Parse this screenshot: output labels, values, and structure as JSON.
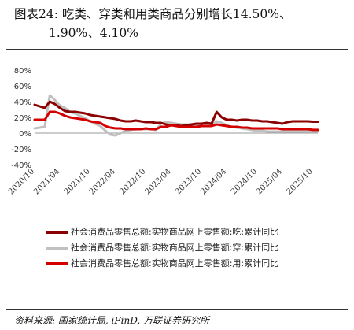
{
  "header": {
    "line1": "图表24:  吃类、穿类和用类商品分别增长14.50%、",
    "line2": "1.90%、4.10%"
  },
  "source": "资料来源:  国家统计局,  iFinD,  万联证券研究所",
  "chart_data": {
    "type": "line",
    "title": "图表24:  吃类、穿类和用类商品分别增长14.50%、1.90%、4.10%",
    "xlabel": "",
    "ylabel": "",
    "ylim": [
      -40,
      80
    ],
    "yticks": [
      "80%",
      "60%",
      "40%",
      "20%",
      "0%",
      "-20%",
      "-40%"
    ],
    "ytick_values": [
      80,
      60,
      40,
      20,
      0,
      -20,
      -40
    ],
    "x_tick_labels": [
      "2020/10",
      "2021/04",
      "2021/10",
      "2022/04",
      "2022/10",
      "2023/04",
      "2023/10",
      "2024/04",
      "2024/10",
      "2025/04",
      "2025/10"
    ],
    "x": [
      "2020/10",
      "2020/11",
      "2020/12",
      "2021/02",
      "2021/03",
      "2021/04",
      "2021/05",
      "2021/06",
      "2021/07",
      "2021/08",
      "2021/09",
      "2021/10",
      "2021/11",
      "2021/12",
      "2022/02",
      "2022/03",
      "2022/04",
      "2022/05",
      "2022/06",
      "2022/07",
      "2022/08",
      "2022/09",
      "2022/10",
      "2022/11",
      "2022/12",
      "2023/02",
      "2023/03",
      "2023/04",
      "2023/05",
      "2023/06",
      "2023/07",
      "2023/08",
      "2023/09",
      "2023/10",
      "2023/11",
      "2023/12",
      "2024/02",
      "2024/03",
      "2024/04",
      "2024/05",
      "2024/06",
      "2024/07",
      "2024/08",
      "2024/09",
      "2024/10",
      "2024/11",
      "2024/12",
      "2025/02",
      "2025/03",
      "2025/04",
      "2025/05",
      "2025/06",
      "2025/07",
      "2025/08",
      "2025/09",
      "2025/10",
      "2025/11"
    ],
    "grid": false,
    "legend_position": "bottom",
    "series": [
      {
        "name": "社会消费品零售总额:实物商品网上零售额:吃:累计同比",
        "color": "#8b0000",
        "values": [
          36,
          34,
          32,
          40,
          37,
          32,
          28,
          27,
          27,
          26,
          25,
          23,
          22,
          21,
          20,
          19,
          18,
          16,
          15,
          15,
          16,
          15,
          14,
          14,
          13,
          13,
          11,
          10,
          10,
          9,
          10,
          11,
          12,
          12,
          13,
          12,
          27,
          20,
          17,
          17,
          16,
          17,
          17,
          16,
          16,
          15,
          15,
          14,
          13,
          12,
          14,
          15,
          15,
          15,
          15,
          14.5,
          14.5
        ]
      },
      {
        "name": "社会消费品零售总额:实物商品网上零售额:穿:累计同比",
        "color": "#c0c0c0",
        "values": [
          6,
          7,
          8,
          48,
          42,
          35,
          32,
          27,
          25,
          22,
          19,
          15,
          12,
          9,
          3,
          -2,
          -3,
          0,
          3,
          4,
          5,
          5,
          5,
          5,
          4,
          12,
          14,
          13,
          12,
          11,
          11,
          11,
          10,
          11,
          10,
          10,
          15,
          13,
          10,
          8,
          7,
          6,
          5,
          4,
          3,
          3,
          2,
          2,
          2,
          2,
          2,
          2,
          2,
          2,
          2,
          1.9,
          1.9
        ]
      },
      {
        "name": "社会消费品零售总额:实物商品网上零售额:用:累计同比",
        "color": "#d40000",
        "values": [
          17,
          17,
          17,
          27,
          27,
          25,
          22,
          20,
          19,
          18,
          17,
          15,
          14,
          13,
          9,
          7,
          6,
          6,
          5,
          5,
          5,
          5,
          6,
          5,
          5,
          8,
          8,
          10,
          9,
          8,
          8,
          8,
          8,
          9,
          9,
          9,
          11,
          10,
          9,
          8,
          8,
          7,
          7,
          6,
          6,
          6,
          6,
          6,
          6,
          5,
          5,
          5,
          5,
          5,
          5,
          4.1,
          4.1
        ]
      }
    ]
  }
}
